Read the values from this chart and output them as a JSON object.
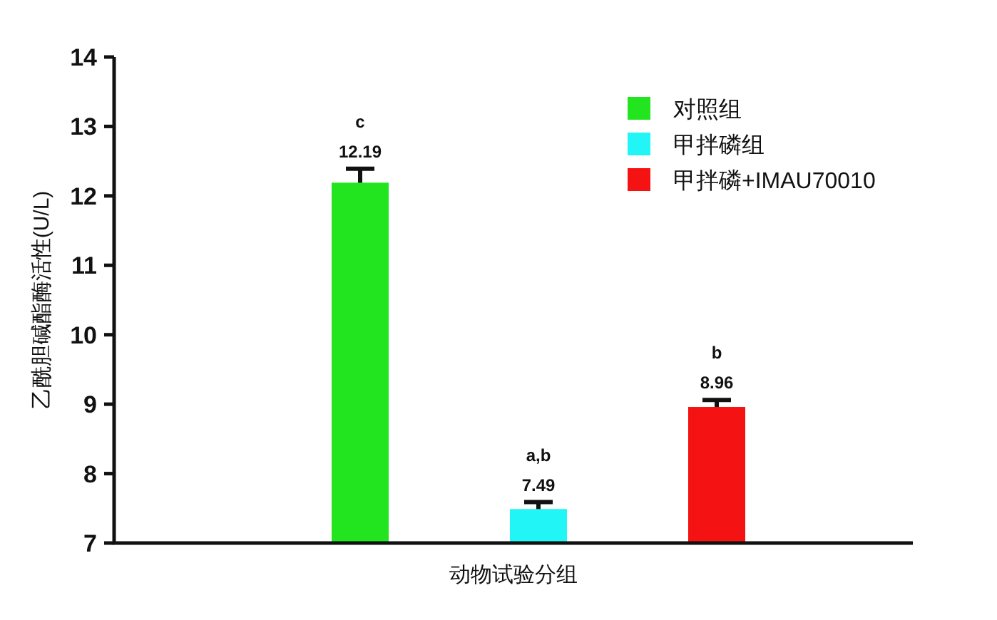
{
  "chart_data": {
    "type": "bar",
    "xlabel": "动物试验分组",
    "ylabel": "乙酰胆碱酯酶活性(U/L)",
    "categories": [
      null,
      null,
      null
    ],
    "series": [
      {
        "name": "对照组",
        "color": "#22e51f",
        "values": [
          12.19,
          null,
          null
        ],
        "errors": [
          0.2,
          null,
          null
        ]
      },
      {
        "name": "甲拌磷组",
        "color": "#22f5f5",
        "values": [
          null,
          7.49,
          null
        ],
        "errors": [
          null,
          0.1,
          null
        ]
      },
      {
        "name": "甲拌磷+IMAU70010",
        "color": "#f51212",
        "values": [
          null,
          null,
          8.96
        ],
        "errors": [
          null,
          null,
          0.1
        ]
      }
    ],
    "ylim": [
      7,
      14
    ],
    "yticks": [
      7,
      8,
      9,
      10,
      11,
      12,
      13,
      14
    ],
    "data_labels": true,
    "legend": "top right",
    "grid": false,
    "annotations": [
      "c",
      "a,b",
      "b"
    ]
  }
}
